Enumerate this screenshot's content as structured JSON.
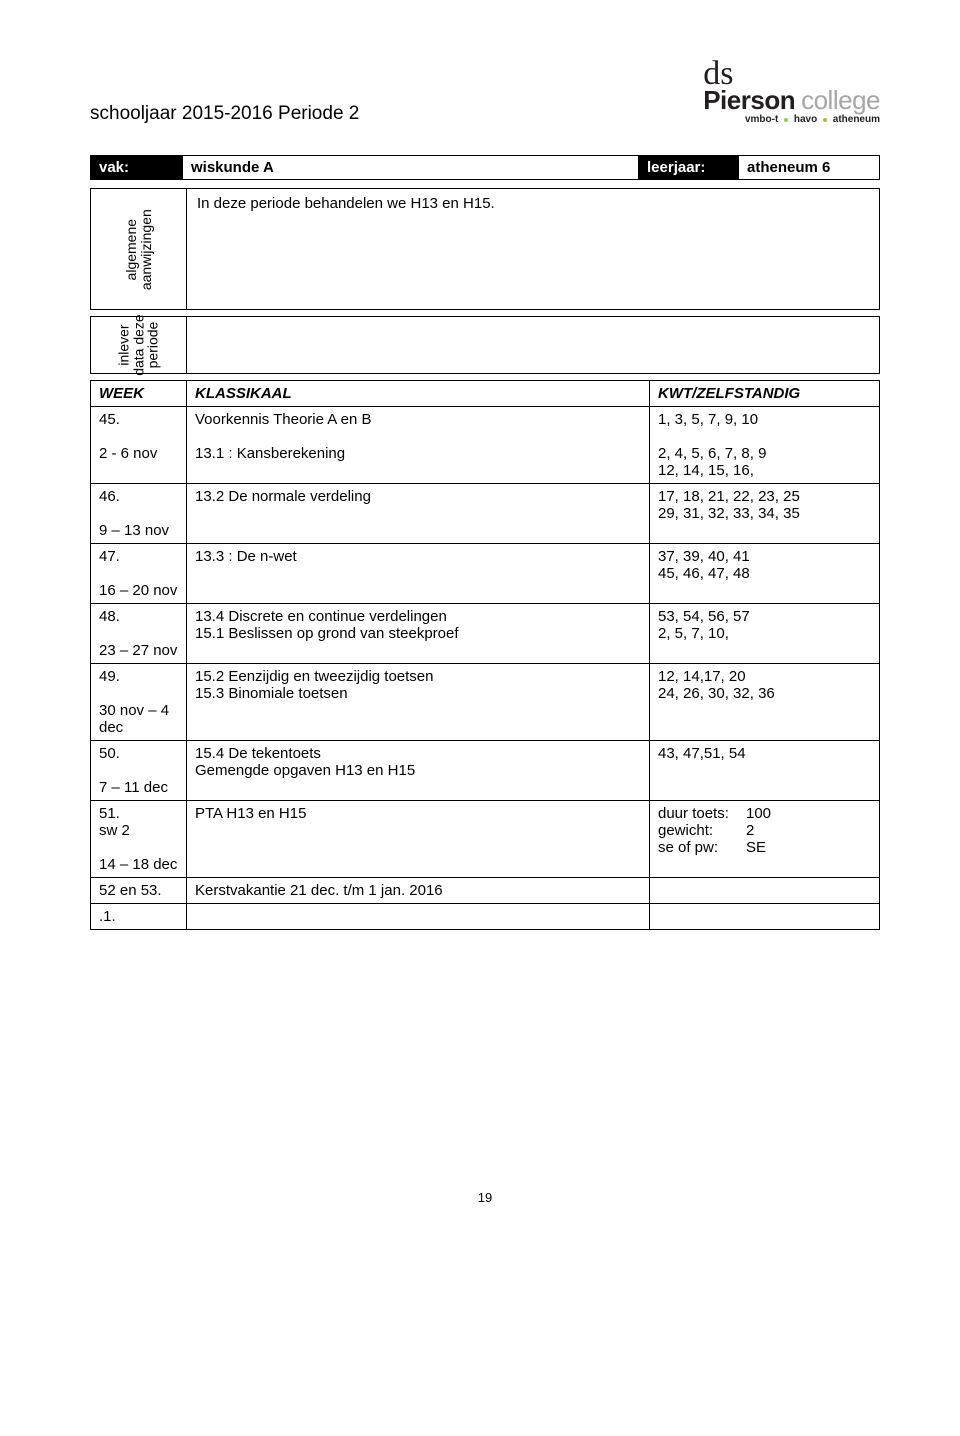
{
  "header": {
    "school_year": "schooljaar 2015-2016 Periode 2",
    "logo": {
      "script": "ds",
      "bold": "Pierson",
      "light": "college",
      "sub_parts": [
        "vmbo-t",
        "havo",
        "atheneum"
      ]
    }
  },
  "bar": {
    "vak_label": "vak:",
    "vak_value": "wiskunde A",
    "leerjaar_label": "leerjaar:",
    "leerjaar_value": "atheneum 6"
  },
  "meta": {
    "algemene_label": "algemene\naanwijzingen",
    "algemene_content": "In deze periode behandelen we H13 en H15.",
    "inlever_label": "inlever\ndata deze\nperiode",
    "inlever_content": ""
  },
  "table": {
    "headers": {
      "week": "WEEK",
      "klassikaal": "KLASSIKAAL",
      "kwt": "KWT/ZELFSTANDIG"
    },
    "rows": [
      {
        "week": "45.\n\n2 - 6 nov",
        "klass": "Voorkennis Theorie A en B\n\n13.1 : Kansberekening",
        "kwt": "1, 3, 5, 7, 9, 10\n\n2, 4, 5, 6, 7, 8, 9\n12, 14, 15, 16,"
      },
      {
        "week": "46.\n\n9 – 13 nov",
        "klass": "13.2  De normale verdeling",
        "kwt": "17, 18, 21, 22, 23, 25\n29, 31, 32, 33, 34, 35"
      },
      {
        "week": "47.\n\n16 – 20 nov",
        "klass": "13.3 : De n-wet",
        "kwt": "37, 39, 40, 41\n45, 46, 47, 48"
      },
      {
        "week": "48.\n\n23 – 27 nov",
        "klass": "13.4 Discrete en continue verdelingen\n15.1 Beslissen op grond van steekproef",
        "kwt": "53,  54, 56, 57\n2, 5, 7, 10,"
      },
      {
        "week": "49.\n\n30 nov – 4 dec",
        "klass": "15.2 Eenzijdig en tweezijdig toetsen\n15.3 Binomiale toetsen",
        "kwt": "12, 14,17, 20\n24, 26, 30, 32, 36"
      },
      {
        "week": "50.\n\n7 – 11 dec",
        "klass": "15.4  De tekentoets\nGemengde opgaven H13 en H15",
        "kwt": "43, 47,51, 54"
      },
      {
        "week": "51.\nsw 2\n\n14 – 18 dec",
        "klass": "PTA H13 en H15",
        "kwt_pairs": [
          {
            "l": "duur toets:",
            "r": "100"
          },
          {
            "l": "gewicht:",
            "r": "2"
          },
          {
            "l": "se of pw:",
            "r": "SE"
          }
        ]
      },
      {
        "week": "52 en 53.",
        "klass": "Kerstvakantie 21 dec. t/m 1 jan. 2016",
        "kwt": ""
      },
      {
        "week": ".1.",
        "klass": "",
        "kwt": ""
      }
    ]
  },
  "page_number": "19",
  "colors": {
    "black": "#000000",
    "white": "#ffffff",
    "logo_gray": "#a6a6a6",
    "logo_dark": "#231f20",
    "accent_green": "#9aca3c"
  }
}
